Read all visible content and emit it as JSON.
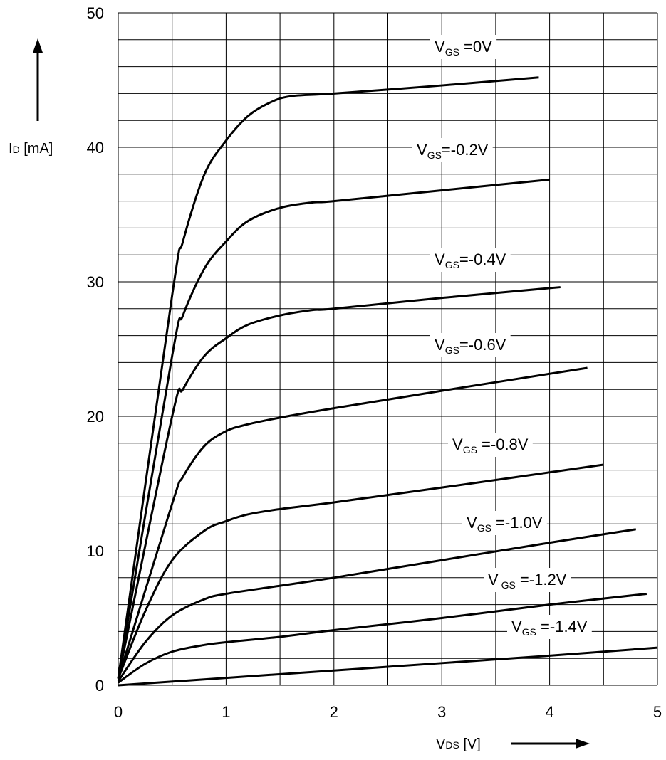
{
  "chart_data": {
    "type": "line",
    "xlabel": {
      "main": "V",
      "sub": "DS",
      "unit": " [V]"
    },
    "ylabel": {
      "main": "I",
      "sub": "D",
      "unit": "  [mA]"
    },
    "xlim": [
      0,
      5
    ],
    "ylim": [
      0,
      50
    ],
    "x_ticks": [
      "0",
      "1",
      "2",
      "3",
      "4",
      "5"
    ],
    "y_ticks": [
      "0",
      "10",
      "20",
      "30",
      "40",
      "50"
    ],
    "grid": true,
    "minor_grid": {
      "x_step": 0.5,
      "y_step": 2
    },
    "series": [
      {
        "name": "VGS =0V",
        "label_main": "V",
        "label_sub": "GS",
        "label_rest": " =0V",
        "x": [
          0,
          0.5,
          0.6,
          0.8,
          1.0,
          1.2,
          1.4,
          1.6,
          2.0,
          3.0,
          3.9
        ],
        "y": [
          0.5,
          29,
          33,
          38,
          40.5,
          42.3,
          43.3,
          43.8,
          44,
          44.6,
          45.2
        ]
      },
      {
        "name": "VGS=-0.2V",
        "label_main": "V",
        "label_sub": "GS",
        "label_rest": "=-0.2V",
        "x": [
          0,
          0.5,
          0.6,
          0.8,
          1.0,
          1.2,
          1.5,
          1.8,
          2.0,
          3.0,
          4.0
        ],
        "y": [
          0.5,
          24.5,
          27.5,
          31,
          33,
          34.5,
          35.5,
          35.9,
          36,
          36.8,
          37.6
        ]
      },
      {
        "name": "VGS=-0.4V",
        "label_main": "V",
        "label_sub": "GS",
        "label_rest": "=-0.4V",
        "x": [
          0,
          0.5,
          0.6,
          0.8,
          1.0,
          1.2,
          1.5,
          1.8,
          2.0,
          3.0,
          4.1
        ],
        "y": [
          0.5,
          20,
          22,
          24.5,
          25.8,
          26.8,
          27.5,
          27.9,
          28,
          28.8,
          29.6
        ]
      },
      {
        "name": "VGS=-0.6V",
        "label_main": "V",
        "label_sub": "GS",
        "label_rest": "=-0.6V",
        "x": [
          0,
          0.5,
          0.6,
          0.8,
          1.0,
          1.2,
          1.5,
          2.0,
          3.0,
          4.35
        ],
        "y": [
          0.5,
          13.5,
          15.5,
          17.8,
          18.9,
          19.4,
          19.9,
          20.6,
          21.9,
          23.6
        ]
      },
      {
        "name": "VGS =-0.8V",
        "label_main": "V",
        "label_sub": "GS",
        "label_rest": " =-0.8V",
        "x": [
          0,
          0.25,
          0.5,
          0.8,
          1.0,
          1.2,
          1.5,
          2.0,
          3.0,
          4.5
        ],
        "y": [
          0.5,
          5.5,
          9.3,
          11.5,
          12.2,
          12.7,
          13.1,
          13.6,
          14.7,
          16.4
        ]
      },
      {
        "name": "VGS =-1.0V",
        "label_main": "V",
        "label_sub": "GS",
        "label_rest": " =-1.0V",
        "x": [
          0,
          0.25,
          0.5,
          0.8,
          1.0,
          1.5,
          2.0,
          3.0,
          4.0,
          4.8
        ],
        "y": [
          0.3,
          3.2,
          5.2,
          6.4,
          6.8,
          7.4,
          8.0,
          9.3,
          10.6,
          11.6
        ]
      },
      {
        "name": "VGS =-1.2V",
        "label_main": "V",
        "label_sub": " GS",
        "label_rest": " =-1.2V",
        "x": [
          0,
          0.25,
          0.5,
          0.8,
          1.0,
          1.5,
          2.0,
          3.0,
          4.0,
          4.9
        ],
        "y": [
          0.2,
          1.6,
          2.5,
          3.0,
          3.2,
          3.6,
          4.1,
          5.0,
          6.0,
          6.8
        ]
      },
      {
        "name": "VGS =-1.4V",
        "label_main": "V",
        "label_sub": "GS",
        "label_rest": " =-1.4V",
        "x": [
          0,
          1.0,
          2.0,
          3.0,
          4.0,
          5.0
        ],
        "y": [
          0,
          0.55,
          1.1,
          1.65,
          2.2,
          2.8
        ]
      }
    ]
  }
}
